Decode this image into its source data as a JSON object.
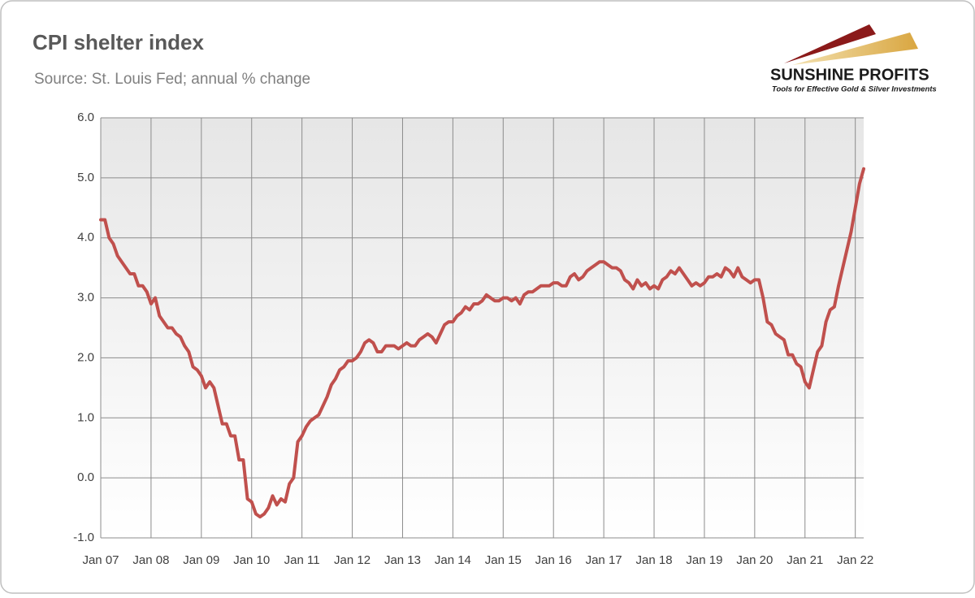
{
  "chart_data": {
    "type": "line",
    "title": "CPI shelter index",
    "subtitle": "Source: St. Louis Fed; annual % change",
    "logo": {
      "name": "SUNSHINE PROFITS",
      "tagline": "Tools for Effective Gold & Silver Investments"
    },
    "color": "#c0504d",
    "grid": true,
    "categories": [
      "Jan 07",
      null,
      null,
      null,
      null,
      null,
      null,
      null,
      null,
      null,
      null,
      null,
      "Jan 08",
      null,
      null,
      null,
      null,
      null,
      null,
      null,
      null,
      null,
      null,
      null,
      "Jan 09",
      null,
      null,
      null,
      null,
      null,
      null,
      null,
      null,
      null,
      null,
      null,
      "Jan 10",
      null,
      null,
      null,
      null,
      null,
      null,
      null,
      null,
      null,
      null,
      null,
      "Jan 11",
      null,
      null,
      null,
      null,
      null,
      null,
      null,
      null,
      null,
      null,
      null,
      "Jan 12",
      null,
      null,
      null,
      null,
      null,
      null,
      null,
      null,
      null,
      null,
      null,
      "Jan 13",
      null,
      null,
      null,
      null,
      null,
      null,
      null,
      null,
      null,
      null,
      null,
      "Jan 14",
      null,
      null,
      null,
      null,
      null,
      null,
      null,
      null,
      null,
      null,
      null,
      "Jan 15",
      null,
      null,
      null,
      null,
      null,
      null,
      null,
      null,
      null,
      null,
      null,
      "Jan 16",
      null,
      null,
      null,
      null,
      null,
      null,
      null,
      null,
      null,
      null,
      null,
      "Jan 17",
      null,
      null,
      null,
      null,
      null,
      null,
      null,
      null,
      null,
      null,
      null,
      "Jan 18",
      null,
      null,
      null,
      null,
      null,
      null,
      null,
      null,
      null,
      null,
      null,
      "Jan 19",
      null,
      null,
      null,
      null,
      null,
      null,
      null,
      null,
      null,
      null,
      null,
      "Jan 20",
      null,
      null,
      null,
      null,
      null,
      null,
      null,
      null,
      null,
      null,
      null,
      "Jan 21",
      null,
      null,
      null,
      null,
      null,
      null,
      null,
      null,
      null,
      null,
      null,
      "Jan 22",
      null,
      null
    ],
    "values": [
      4.3,
      4.3,
      4.0,
      3.9,
      3.7,
      3.6,
      3.5,
      3.4,
      3.4,
      3.2,
      3.2,
      3.1,
      2.9,
      3.0,
      2.7,
      2.6,
      2.5,
      2.5,
      2.4,
      2.35,
      2.2,
      2.1,
      1.85,
      1.8,
      1.7,
      1.5,
      1.6,
      1.5,
      1.2,
      0.9,
      0.9,
      0.7,
      0.7,
      0.3,
      0.3,
      -0.35,
      -0.4,
      -0.6,
      -0.65,
      -0.6,
      -0.5,
      -0.3,
      -0.45,
      -0.35,
      -0.4,
      -0.1,
      0.0,
      0.6,
      0.7,
      0.85,
      0.95,
      1.0,
      1.05,
      1.2,
      1.35,
      1.55,
      1.65,
      1.8,
      1.85,
      1.95,
      1.95,
      2.0,
      2.1,
      2.25,
      2.3,
      2.25,
      2.1,
      2.1,
      2.2,
      2.2,
      2.2,
      2.15,
      2.2,
      2.25,
      2.2,
      2.2,
      2.3,
      2.35,
      2.4,
      2.35,
      2.25,
      2.4,
      2.55,
      2.6,
      2.6,
      2.7,
      2.75,
      2.85,
      2.8,
      2.9,
      2.9,
      2.95,
      3.05,
      3.0,
      2.95,
      2.95,
      3.0,
      3.0,
      2.95,
      3.0,
      2.9,
      3.05,
      3.1,
      3.1,
      3.15,
      3.2,
      3.2,
      3.2,
      3.25,
      3.25,
      3.2,
      3.2,
      3.35,
      3.4,
      3.3,
      3.35,
      3.45,
      3.5,
      3.55,
      3.6,
      3.6,
      3.55,
      3.5,
      3.5,
      3.45,
      3.3,
      3.25,
      3.15,
      3.3,
      3.2,
      3.25,
      3.15,
      3.2,
      3.15,
      3.3,
      3.35,
      3.45,
      3.4,
      3.5,
      3.4,
      3.3,
      3.2,
      3.25,
      3.2,
      3.25,
      3.35,
      3.35,
      3.4,
      3.35,
      3.5,
      3.45,
      3.35,
      3.5,
      3.35,
      3.3,
      3.25,
      3.3,
      3.3,
      3.0,
      2.6,
      2.55,
      2.4,
      2.35,
      2.3,
      2.05,
      2.05,
      1.9,
      1.85,
      1.6,
      1.5,
      1.8,
      2.1,
      2.2,
      2.6,
      2.8,
      2.85,
      3.2,
      3.5,
      3.8,
      4.1,
      4.5,
      4.9,
      5.15
    ],
    "ylim": [
      -1,
      6
    ],
    "yticks": [
      {
        "value": -1,
        "label": "-1.0"
      },
      {
        "value": 0,
        "label": "0.0"
      },
      {
        "value": 1,
        "label": "1.0"
      },
      {
        "value": 2,
        "label": "2.0"
      },
      {
        "value": 3,
        "label": "3.0"
      },
      {
        "value": 4,
        "label": "4.0"
      },
      {
        "value": 5,
        "label": "5.0"
      },
      {
        "value": 6,
        "label": "6.0"
      }
    ]
  }
}
